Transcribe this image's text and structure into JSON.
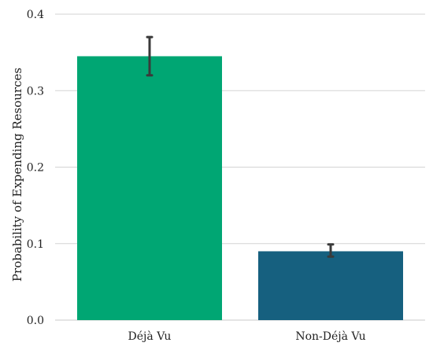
{
  "chart_data": {
    "type": "bar",
    "title": "",
    "xlabel": "",
    "ylabel": "Probability of Expending Resources",
    "categories": [
      "Déjà Vu",
      "Non-Déjà Vu"
    ],
    "values": [
      0.345,
      0.09
    ],
    "error": [
      [
        0.32,
        0.37
      ],
      [
        0.083,
        0.099
      ]
    ],
    "colors": [
      "#00a673",
      "#16607f"
    ],
    "ylim": [
      0,
      0.4
    ],
    "yticks": [
      0.0,
      0.1,
      0.2,
      0.3,
      0.4
    ],
    "ytick_labels": [
      "0.0",
      "0.1",
      "0.2",
      "0.3",
      "0.4"
    ],
    "grid": "horizontal",
    "error_bar_color": "#3a3a3a"
  }
}
